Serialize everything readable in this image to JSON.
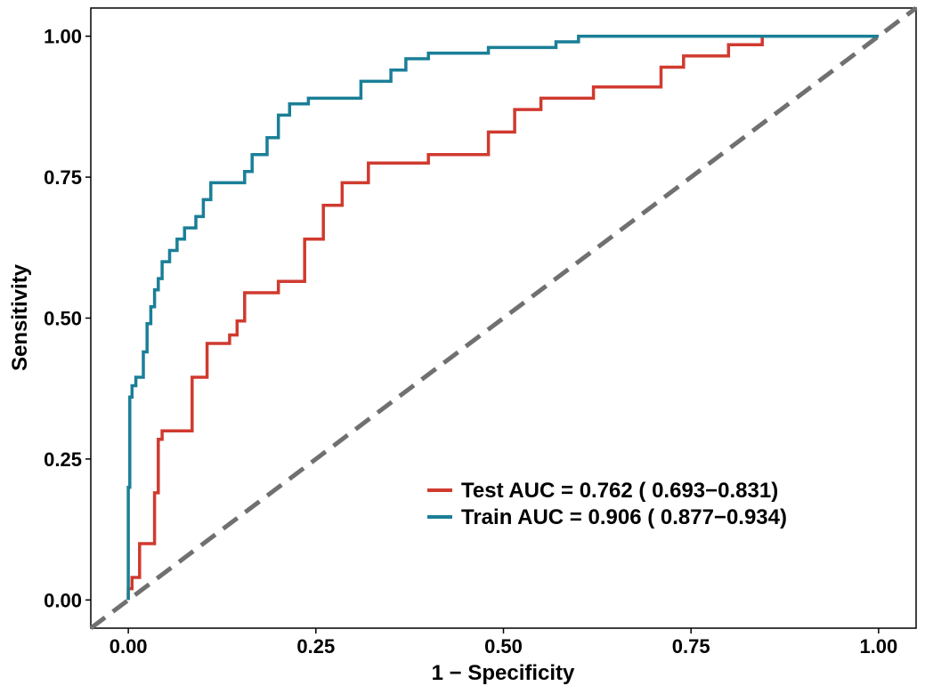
{
  "chart_data": {
    "type": "line",
    "xlabel": "1 − Specificity",
    "ylabel": "Sensitivity",
    "xlim": [
      -0.05,
      1.05
    ],
    "ylim": [
      -0.05,
      1.05
    ],
    "xticks": [
      0.0,
      0.25,
      0.5,
      0.75,
      1.0
    ],
    "yticks": [
      0.0,
      0.25,
      0.5,
      0.75,
      1.0
    ],
    "xtick_labels": [
      "0.00",
      "0.25",
      "0.50",
      "0.75",
      "1.00"
    ],
    "ytick_labels": [
      "0.00",
      "0.25",
      "0.50",
      "0.75",
      "1.00"
    ],
    "grid": false,
    "legend_position": "bottom-right",
    "series": [
      {
        "name": "Test AUC = 0.762 ( 0.693−0.831)",
        "color": "#D03A2F",
        "x": [
          0.0,
          0.0,
          0.005,
          0.005,
          0.015,
          0.015,
          0.035,
          0.035,
          0.04,
          0.04,
          0.045,
          0.045,
          0.085,
          0.085,
          0.105,
          0.105,
          0.135,
          0.135,
          0.145,
          0.145,
          0.155,
          0.155,
          0.175,
          0.175,
          0.2,
          0.2,
          0.235,
          0.235,
          0.26,
          0.26,
          0.285,
          0.285,
          0.32,
          0.32,
          0.345,
          0.345,
          0.4,
          0.4,
          0.48,
          0.48,
          0.515,
          0.515,
          0.55,
          0.55,
          0.62,
          0.62,
          0.71,
          0.71,
          0.74,
          0.74,
          0.8,
          0.8,
          0.845,
          0.845,
          1.0
        ],
        "y": [
          0.0,
          0.02,
          0.02,
          0.04,
          0.04,
          0.1,
          0.1,
          0.19,
          0.19,
          0.285,
          0.285,
          0.3,
          0.3,
          0.395,
          0.395,
          0.455,
          0.455,
          0.47,
          0.47,
          0.495,
          0.495,
          0.545,
          0.545,
          0.545,
          0.545,
          0.565,
          0.565,
          0.64,
          0.64,
          0.7,
          0.7,
          0.74,
          0.74,
          0.775,
          0.775,
          0.775,
          0.775,
          0.79,
          0.79,
          0.83,
          0.83,
          0.87,
          0.87,
          0.89,
          0.89,
          0.91,
          0.91,
          0.945,
          0.945,
          0.965,
          0.965,
          0.985,
          0.985,
          1.0,
          1.0
        ]
      },
      {
        "name": "Train AUC = 0.906 ( 0.877−0.934)",
        "color": "#1A7F97",
        "x": [
          0.0,
          0.0,
          0.002,
          0.002,
          0.005,
          0.005,
          0.01,
          0.01,
          0.02,
          0.02,
          0.025,
          0.025,
          0.03,
          0.03,
          0.035,
          0.035,
          0.04,
          0.04,
          0.045,
          0.045,
          0.055,
          0.055,
          0.065,
          0.065,
          0.075,
          0.075,
          0.09,
          0.09,
          0.1,
          0.1,
          0.11,
          0.11,
          0.125,
          0.125,
          0.155,
          0.155,
          0.165,
          0.165,
          0.185,
          0.185,
          0.2,
          0.2,
          0.215,
          0.215,
          0.24,
          0.24,
          0.31,
          0.31,
          0.35,
          0.35,
          0.37,
          0.37,
          0.4,
          0.4,
          0.48,
          0.48,
          0.57,
          0.57,
          0.6,
          0.6,
          1.0
        ],
        "y": [
          0.0,
          0.2,
          0.2,
          0.36,
          0.36,
          0.38,
          0.38,
          0.395,
          0.395,
          0.44,
          0.44,
          0.49,
          0.49,
          0.52,
          0.52,
          0.55,
          0.55,
          0.57,
          0.57,
          0.6,
          0.6,
          0.62,
          0.62,
          0.64,
          0.64,
          0.66,
          0.66,
          0.68,
          0.68,
          0.71,
          0.71,
          0.74,
          0.74,
          0.74,
          0.74,
          0.76,
          0.76,
          0.79,
          0.79,
          0.82,
          0.82,
          0.86,
          0.86,
          0.88,
          0.88,
          0.89,
          0.89,
          0.92,
          0.92,
          0.94,
          0.94,
          0.96,
          0.96,
          0.97,
          0.97,
          0.98,
          0.98,
          0.99,
          0.99,
          1.0,
          1.0
        ]
      }
    ],
    "reference_line": {
      "x": [
        -0.05,
        1.05
      ],
      "y": [
        -0.05,
        1.05
      ],
      "color": "#707070",
      "style": "dashed"
    }
  }
}
